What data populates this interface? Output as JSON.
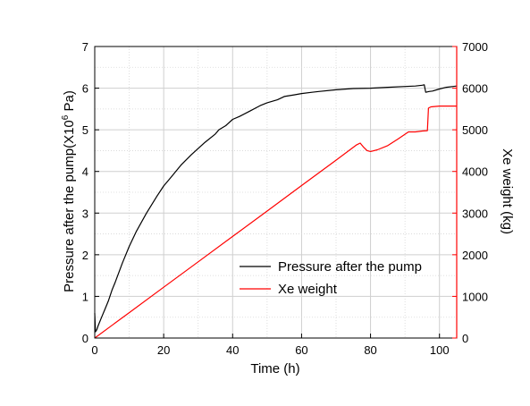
{
  "chart_data": {
    "type": "line",
    "xlabel": "Time (h)",
    "ylabel_left": "Pressure after the pump(X10",
    "ylabel_left_sup": "6",
    "ylabel_left_suffix": " Pa)",
    "ylabel_right": "Xe weight (kg)",
    "xlim": [
      0,
      105
    ],
    "ylim_left": [
      0,
      7
    ],
    "ylim_right": [
      0,
      7000
    ],
    "x_ticks": [
      0,
      20,
      40,
      60,
      80,
      100
    ],
    "y_left_ticks": [
      0,
      1,
      2,
      3,
      4,
      5,
      6,
      7
    ],
    "y_right_ticks": [
      0,
      1000,
      2000,
      3000,
      4000,
      5000,
      6000,
      7000
    ],
    "grid": true,
    "legend_position": "lower-right",
    "series": [
      {
        "name": "Pressure after the pump",
        "axis": "left",
        "color": "#000000",
        "points": [
          [
            0,
            0.6
          ],
          [
            0.2,
            0.15
          ],
          [
            0.6,
            0.2
          ],
          [
            1,
            0.3
          ],
          [
            2,
            0.5
          ],
          [
            3,
            0.7
          ],
          [
            4,
            0.9
          ],
          [
            5,
            1.15
          ],
          [
            6,
            1.35
          ],
          [
            8,
            1.8
          ],
          [
            10,
            2.2
          ],
          [
            12,
            2.55
          ],
          [
            15,
            3.0
          ],
          [
            18,
            3.4
          ],
          [
            20,
            3.65
          ],
          [
            22,
            3.85
          ],
          [
            25,
            4.15
          ],
          [
            28,
            4.4
          ],
          [
            30,
            4.55
          ],
          [
            32,
            4.7
          ],
          [
            35,
            4.9
          ],
          [
            36,
            5.0
          ],
          [
            38,
            5.1
          ],
          [
            40,
            5.25
          ],
          [
            42,
            5.32
          ],
          [
            45,
            5.45
          ],
          [
            48,
            5.58
          ],
          [
            50,
            5.65
          ],
          [
            53,
            5.72
          ],
          [
            55,
            5.8
          ],
          [
            58,
            5.84
          ],
          [
            60,
            5.87
          ],
          [
            63,
            5.9
          ],
          [
            65,
            5.92
          ],
          [
            70,
            5.96
          ],
          [
            75,
            5.99
          ],
          [
            80,
            6.0
          ],
          [
            85,
            6.02
          ],
          [
            90,
            6.04
          ],
          [
            93,
            6.05
          ],
          [
            95,
            6.07
          ],
          [
            95.6,
            6.08
          ],
          [
            96,
            5.9
          ],
          [
            97,
            5.92
          ],
          [
            98,
            5.93
          ],
          [
            100,
            5.98
          ],
          [
            102,
            6.02
          ],
          [
            105,
            6.05
          ]
        ]
      },
      {
        "name": "Xe weight",
        "axis": "right",
        "color": "#ff0000",
        "points": [
          [
            0,
            0
          ],
          [
            10,
            610
          ],
          [
            20,
            1220
          ],
          [
            30,
            1830
          ],
          [
            40,
            2440
          ],
          [
            50,
            3050
          ],
          [
            60,
            3660
          ],
          [
            70,
            4270
          ],
          [
            76,
            4640
          ],
          [
            77,
            4680
          ],
          [
            78,
            4580
          ],
          [
            79,
            4500
          ],
          [
            80,
            4480
          ],
          [
            82,
            4520
          ],
          [
            85,
            4620
          ],
          [
            88,
            4780
          ],
          [
            91,
            4950
          ],
          [
            93,
            4950
          ],
          [
            95,
            4970
          ],
          [
            96.5,
            4980
          ],
          [
            96.8,
            5520
          ],
          [
            97.5,
            5550
          ],
          [
            100,
            5570
          ],
          [
            105,
            5570
          ]
        ]
      }
    ]
  }
}
